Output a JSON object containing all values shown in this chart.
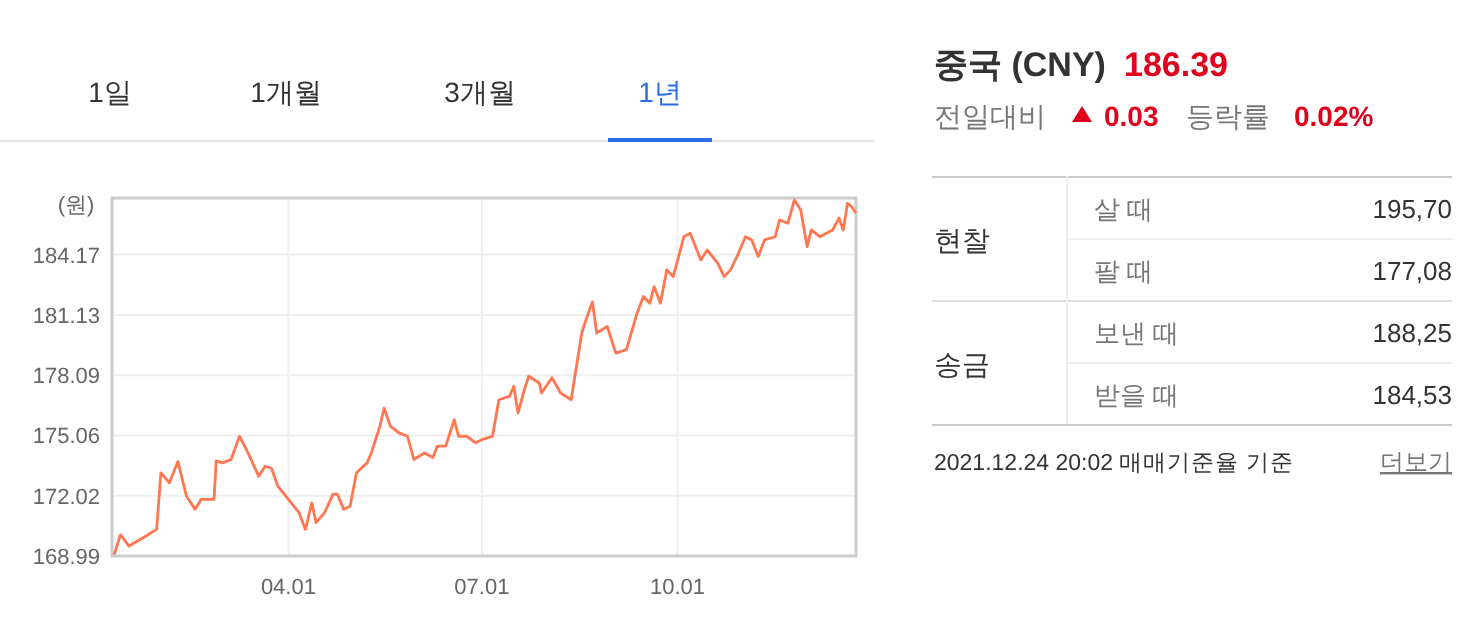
{
  "chart_data": [
    {
      "type": "line",
      "ylabel": "(원)",
      "annotations": [
        "1일",
        "1개월",
        "3개월",
        "1년"
      ],
      "xlim": [
        "2021-01-08",
        "2021-12-24"
      ],
      "ylim": [
        168.99,
        187.02
      ],
      "xticks": [
        {
          "value": "2021-04-01",
          "label": "04.01"
        },
        {
          "value": "2021-07-01",
          "label": "07.01"
        },
        {
          "value": "2021-10-01",
          "label": "10.01"
        }
      ],
      "yticks": [
        168.99,
        172.02,
        175.06,
        178.09,
        181.13,
        184.17
      ],
      "grid": true,
      "marker": "none",
      "x": [
        "2021-01-09",
        "2021-01-12",
        "2021-01-16",
        "2021-01-24",
        "2021-01-29",
        "2021-01-31",
        "2021-02-04",
        "2021-02-08",
        "2021-02-12",
        "2021-02-16",
        "2021-02-19",
        "2021-02-25",
        "2021-02-26",
        "2021-03-01",
        "2021-03-05",
        "2021-03-09",
        "2021-03-13",
        "2021-03-18",
        "2021-03-21",
        "2021-03-24",
        "2021-03-27",
        "2021-04-01",
        "2021-04-06",
        "2021-04-09",
        "2021-04-12",
        "2021-04-14",
        "2021-04-18",
        "2021-04-22",
        "2021-04-24",
        "2021-04-27",
        "2021-04-30",
        "2021-05-03",
        "2021-05-08",
        "2021-05-10",
        "2021-05-14",
        "2021-05-16",
        "2021-05-19",
        "2021-05-23",
        "2021-05-27",
        "2021-05-30",
        "2021-06-04",
        "2021-06-08",
        "2021-06-10",
        "2021-06-14",
        "2021-06-18",
        "2021-06-20",
        "2021-06-24",
        "2021-06-28",
        "2021-07-01",
        "2021-07-06",
        "2021-07-09",
        "2021-07-14",
        "2021-07-16",
        "2021-07-18",
        "2021-07-21",
        "2021-07-23",
        "2021-07-28",
        "2021-07-29",
        "2021-08-03",
        "2021-08-07",
        "2021-08-12",
        "2021-08-17",
        "2021-08-19",
        "2021-08-22",
        "2021-08-24",
        "2021-08-29",
        "2021-09-02",
        "2021-09-07",
        "2021-09-12",
        "2021-09-15",
        "2021-09-18",
        "2021-09-20",
        "2021-09-23",
        "2021-09-26",
        "2021-09-29",
        "2021-10-02",
        "2021-10-04",
        "2021-10-07",
        "2021-10-12",
        "2021-10-15",
        "2021-10-20",
        "2021-10-23",
        "2021-10-26",
        "2021-10-29",
        "2021-11-02",
        "2021-11-05",
        "2021-11-08",
        "2021-11-11",
        "2021-11-16",
        "2021-11-18",
        "2021-11-22",
        "2021-11-25",
        "2021-11-28",
        "2021-12-01",
        "2021-12-03",
        "2021-12-07",
        "2021-12-13",
        "2021-12-16",
        "2021-12-18",
        "2021-12-20",
        "2021-12-22",
        "2021-12-24"
      ],
      "series": [
        {
          "color": "#ff7650",
          "values": [
            169.06,
            170.06,
            169.49,
            170.0,
            170.33,
            173.18,
            172.68,
            173.75,
            172.01,
            171.34,
            171.84,
            171.84,
            173.78,
            173.68,
            173.85,
            175.02,
            174.18,
            173.01,
            173.51,
            173.41,
            172.51,
            171.84,
            171.17,
            170.33,
            171.67,
            170.67,
            171.17,
            172.11,
            172.11,
            171.34,
            171.5,
            173.18,
            173.68,
            174.18,
            175.52,
            176.43,
            175.52,
            175.19,
            175.02,
            173.85,
            174.18,
            173.95,
            174.52,
            174.52,
            175.86,
            175.02,
            175.02,
            174.69,
            174.85,
            175.02,
            176.86,
            177.03,
            177.54,
            176.19,
            177.37,
            178.04,
            177.7,
            177.2,
            177.97,
            177.2,
            176.86,
            180.22,
            180.89,
            181.79,
            180.22,
            180.55,
            179.21,
            179.38,
            181.22,
            182.06,
            181.72,
            182.56,
            181.72,
            183.4,
            183.06,
            184.24,
            185.07,
            185.24,
            183.9,
            184.4,
            183.73,
            183.06,
            183.4,
            184.07,
            185.07,
            184.91,
            184.07,
            184.91,
            185.07,
            185.91,
            185.75,
            186.92,
            186.42,
            184.57,
            185.41,
            185.07,
            185.41,
            186.01,
            185.41,
            186.75,
            186.58,
            186.25
          ]
        }
      ]
    },
    {
      "type": "other",
      "title": "중국 (CNY)",
      "annotations": [
        "186.39",
        "전일대비",
        "0.03",
        "등락률",
        "0.02%",
        "현찰",
        "살 때",
        "195,70",
        "팔 때",
        "177,08",
        "송금",
        "보낸 때",
        "188,25",
        "받을 때",
        "184,53",
        "2021.12.24 20:02 매매기준율 기준",
        "더보기"
      ]
    }
  ]
}
